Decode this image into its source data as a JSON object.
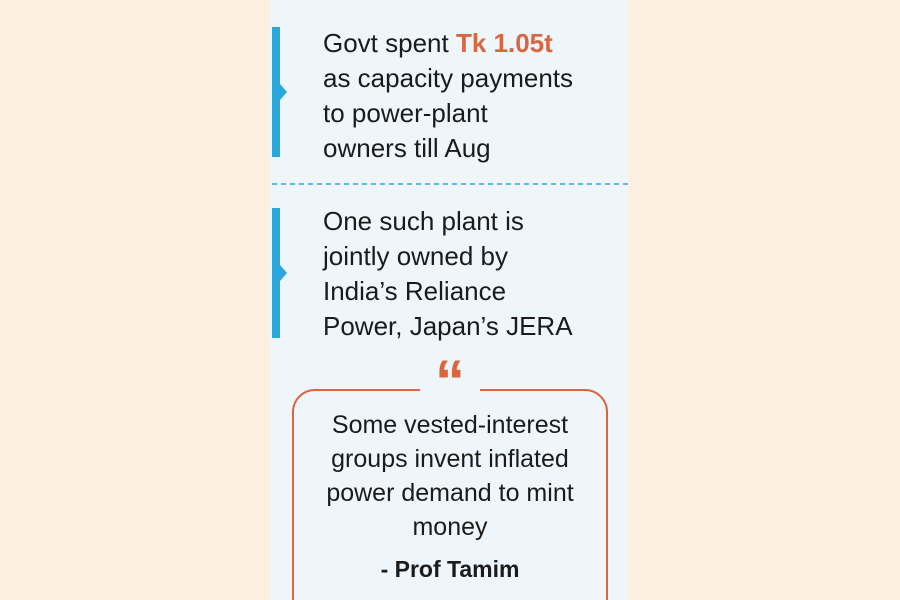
{
  "items": [
    {
      "prefix": "Govt spent",
      "highlight": "Tk 1.05t",
      "lines": [
        "as capacity payments",
        "to power-plant",
        "owners till Aug"
      ]
    },
    {
      "lines": [
        "One such plant is",
        "jointly owned by",
        "India’s Reliance",
        "Power, Japan’s JERA"
      ]
    }
  ],
  "quote": {
    "mark": "“",
    "lines": [
      "Some vested-interest",
      "groups invent inflated",
      "power demand to mint",
      "money"
    ],
    "attribution": "- Prof Tamim"
  }
}
